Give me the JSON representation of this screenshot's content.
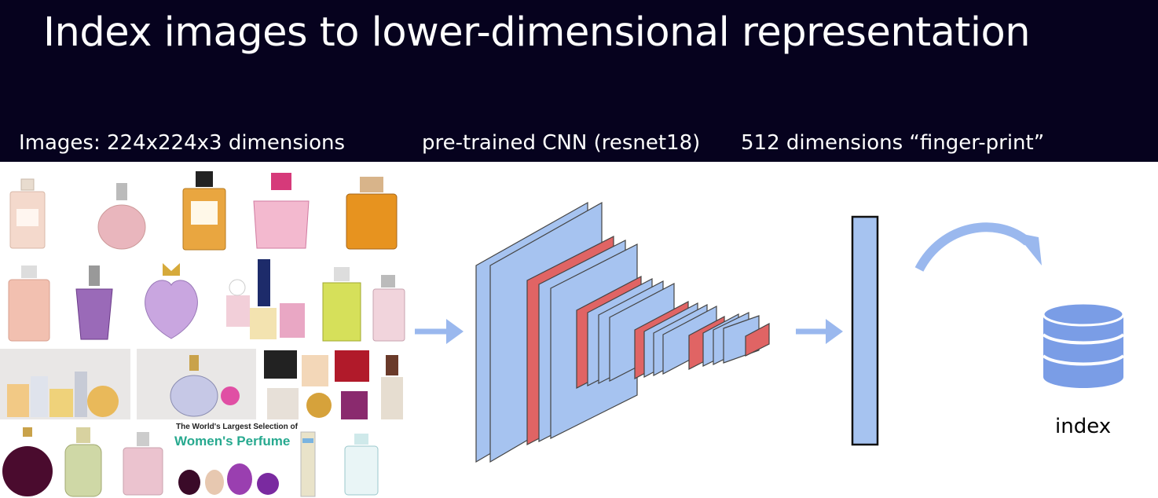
{
  "slide": {
    "title": "Index images to lower-dimensional representation",
    "captions": {
      "images": "Images: 224x224x3 dimensions",
      "cnn": "pre-trained CNN (resnet18)",
      "fingerprint": "512 dimensions “finger-print”"
    },
    "index_label": "index"
  },
  "collage": {
    "banner_small": "The World's Largest Selection of",
    "banner_title": "Women's Perfume"
  },
  "colors": {
    "header_bg": "#06021e",
    "layer_blue": "#a6c3f0",
    "layer_red": "#e06464",
    "arrow_blue": "#9ab8ee",
    "db_blue": "#7a9de6"
  },
  "icons": [
    "arrow-right-icon",
    "curved-arrow-icon",
    "database-icon"
  ]
}
